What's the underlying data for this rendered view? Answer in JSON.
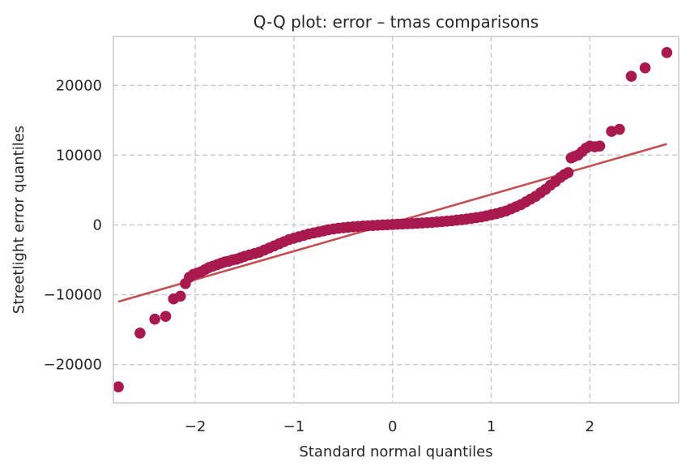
{
  "chart_data": {
    "type": "scatter",
    "title": "Q-Q plot: error – tmas comparisons",
    "xlabel": "Standard normal quantiles",
    "ylabel": "Streetlight error quantiles",
    "xlim": [
      -2.83,
      2.9
    ],
    "ylim": [
      -25500,
      27000
    ],
    "xticks": [
      -2,
      -1,
      0,
      1,
      2
    ],
    "xtick_labels": [
      "−2",
      "−1",
      "0",
      "1",
      "2"
    ],
    "yticks": [
      -20000,
      -10000,
      0,
      10000,
      20000
    ],
    "ytick_labels": [
      "−20000",
      "−10000",
      "0",
      "10000",
      "20000"
    ],
    "grid": true,
    "legend": "none",
    "colors": {
      "points": "#a8194e",
      "fit_line": "#c44e52",
      "grid": "#c8c8c8",
      "frame": "#cccccc"
    },
    "series": [
      {
        "kind": "points",
        "x": [
          -2.78,
          -2.56,
          -2.41,
          -2.3,
          -2.22,
          -2.15,
          -2.1,
          -2.06,
          -2.02,
          -1.98,
          -1.94,
          -1.9,
          -1.86,
          -1.82,
          -1.78,
          -1.74,
          -1.7,
          -1.66,
          -1.62,
          -1.58,
          -1.54,
          -1.5,
          -1.45,
          -1.4,
          -1.35,
          -1.3,
          -1.25,
          -1.2,
          -1.15,
          -1.1,
          -1.05,
          -1.0,
          -0.95,
          -0.9,
          -0.85,
          -0.8,
          -0.75,
          -0.7,
          -0.65,
          -0.6,
          -0.55,
          -0.5,
          -0.45,
          -0.4,
          -0.35,
          -0.3,
          -0.25,
          -0.2,
          -0.15,
          -0.1,
          -0.05,
          0.0,
          0.05,
          0.1,
          0.15,
          0.2,
          0.25,
          0.3,
          0.35,
          0.4,
          0.45,
          0.5,
          0.55,
          0.6,
          0.65,
          0.7,
          0.75,
          0.8,
          0.85,
          0.9,
          0.95,
          1.0,
          1.05,
          1.1,
          1.15,
          1.2,
          1.25,
          1.3,
          1.35,
          1.4,
          1.45,
          1.5,
          1.55,
          1.6,
          1.65,
          1.7,
          1.74,
          1.78,
          1.81,
          1.84,
          1.88,
          1.92,
          1.96,
          2.0,
          2.05,
          2.1,
          2.22,
          2.3,
          2.42,
          2.56,
          2.78
        ],
        "y": [
          -23200,
          -15500,
          -13500,
          -13100,
          -10600,
          -10200,
          -8400,
          -7500,
          -7100,
          -6900,
          -6700,
          -6400,
          -6100,
          -5900,
          -5700,
          -5500,
          -5300,
          -5200,
          -5000,
          -4900,
          -4700,
          -4500,
          -4300,
          -4100,
          -3900,
          -3600,
          -3300,
          -3000,
          -2700,
          -2400,
          -2100,
          -1900,
          -1700,
          -1500,
          -1300,
          -1150,
          -1000,
          -850,
          -700,
          -580,
          -480,
          -400,
          -330,
          -270,
          -210,
          -160,
          -120,
          -80,
          -40,
          0,
          30,
          60,
          100,
          130,
          170,
          200,
          240,
          280,
          320,
          370,
          420,
          480,
          540,
          600,
          680,
          760,
          850,
          950,
          1050,
          1150,
          1300,
          1450,
          1600,
          1800,
          2000,
          2300,
          2600,
          2900,
          3300,
          3700,
          4100,
          4600,
          5100,
          5700,
          6200,
          6800,
          7200,
          7500,
          9600,
          9800,
          10000,
          10500,
          11000,
          11300,
          11200,
          11300,
          13400,
          13700,
          21300,
          22500,
          24700
        ]
      },
      {
        "kind": "fit_line",
        "x": [
          -2.78,
          2.78
        ],
        "y": [
          -11000,
          11600
        ]
      }
    ]
  }
}
